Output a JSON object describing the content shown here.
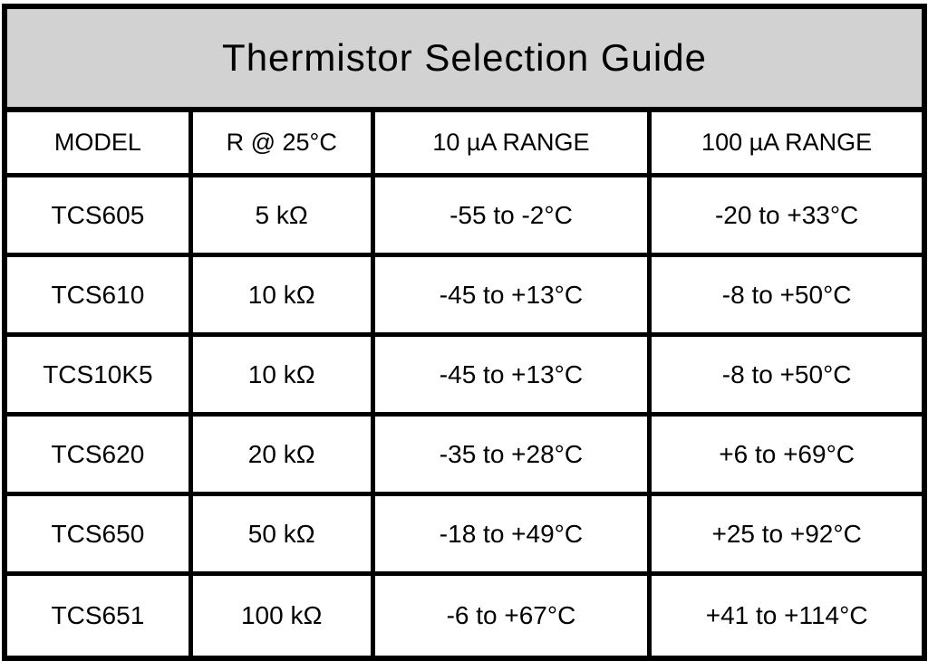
{
  "title": "Thermistor Selection Guide",
  "table": {
    "columns": {
      "model": "MODEL",
      "resistance": "R @ 25°C",
      "range_10ua": "10 µA RANGE",
      "range_100ua": "100 µA RANGE"
    },
    "rows": [
      {
        "model": "TCS605",
        "resistance": "5 kΩ",
        "range_10ua": "-55 to -2°C",
        "range_100ua": "-20 to +33°C"
      },
      {
        "model": "TCS610",
        "resistance": "10 kΩ",
        "range_10ua": "-45 to +13°C",
        "range_100ua": "-8 to +50°C"
      },
      {
        "model": "TCS10K5",
        "resistance": "10 kΩ",
        "range_10ua": "-45 to +13°C",
        "range_100ua": "-8 to +50°C"
      },
      {
        "model": "TCS620",
        "resistance": "20 kΩ",
        "range_10ua": "-35 to +28°C",
        "range_100ua": "+6 to +69°C"
      },
      {
        "model": "TCS650",
        "resistance": "50 kΩ",
        "range_10ua": "-18 to +49°C",
        "range_100ua": "+25 to +92°C"
      },
      {
        "model": "TCS651",
        "resistance": "100 kΩ",
        "range_10ua": "-6 to +67°C",
        "range_100ua": "+41 to +114°C"
      }
    ]
  },
  "colors": {
    "title_background": "#d2d2d2",
    "border": "#000000",
    "cell_background": "#ffffff",
    "text": "#000000"
  }
}
